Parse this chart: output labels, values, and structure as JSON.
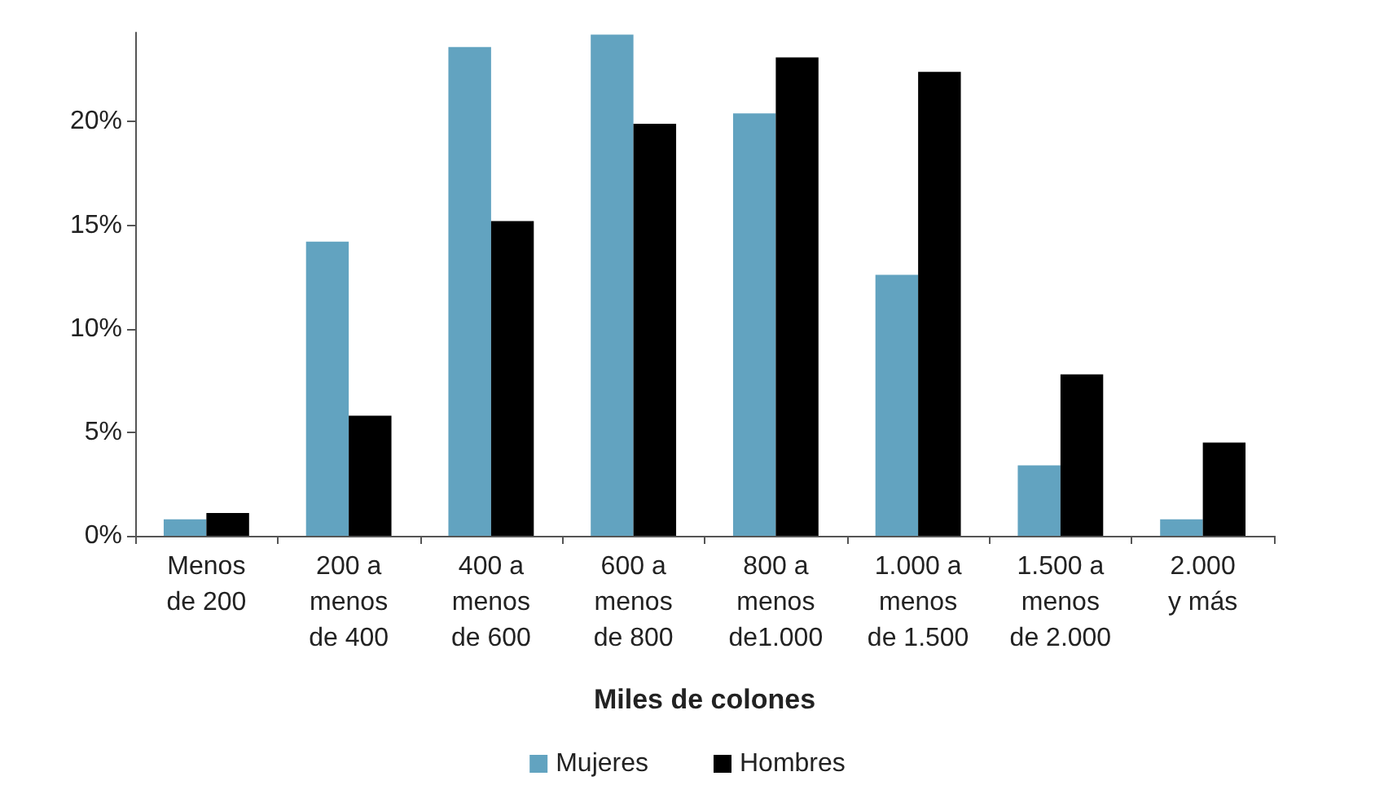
{
  "chart_data": {
    "type": "bar",
    "xlabel": "Miles de colones",
    "categories": [
      "Menos\nde 200",
      "200 a\nmenos\nde 400",
      "400 a\nmenos\nde 600",
      "600 a\nmenos\nde 800",
      "800 a\nmenos\nde1.000",
      "1.000 a\nmenos\nde 1.500",
      "1.500 a\nmenos\nde 2.000",
      "2.000\ny más"
    ],
    "series": [
      {
        "name": "Mujeres",
        "color": "#62a3c0",
        "values": [
          0.8,
          14.2,
          23.6,
          24.2,
          20.4,
          12.6,
          3.4,
          0.8
        ]
      },
      {
        "name": "Hombres",
        "color": "#000000",
        "values": [
          1.1,
          5.8,
          15.2,
          19.9,
          23.1,
          22.4,
          7.8,
          4.5
        ]
      }
    ],
    "ylim": [
      0,
      24.3
    ],
    "yticks": [
      {
        "value": 0,
        "label": "0%"
      },
      {
        "value": 5,
        "label": "5%"
      },
      {
        "value": 10,
        "label": "10%"
      },
      {
        "value": 15,
        "label": "15%"
      },
      {
        "value": 20,
        "label": "20%"
      }
    ],
    "grid": false,
    "legend": "bottom"
  }
}
